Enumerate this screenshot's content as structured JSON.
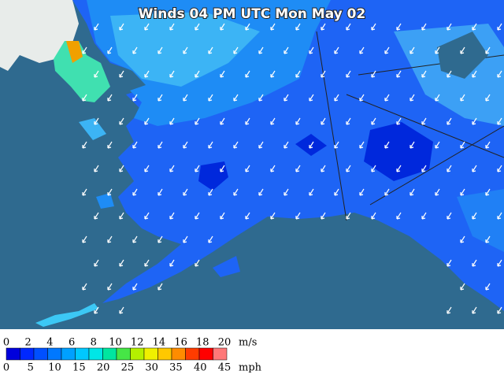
{
  "title": "Winds 04 PM UTC Mon May 02",
  "legend": {
    "colors": [
      "#0000dc",
      "#0028ff",
      "#0050ff",
      "#0078ff",
      "#00a0ff",
      "#00c8ff",
      "#00e6e6",
      "#00e6a0",
      "#46e646",
      "#b4f000",
      "#f0f000",
      "#ffc800",
      "#ff8c00",
      "#ff3c00",
      "#ff0000",
      "#ff7878"
    ],
    "ms_ticks": [
      "0",
      "2",
      "4",
      "6",
      "8",
      "10",
      "12",
      "14",
      "16",
      "18",
      "20"
    ],
    "ms_unit": "m/s",
    "mph_ticks": [
      "0",
      "5",
      "10",
      "15",
      "20",
      "25",
      "30",
      "35",
      "40",
      "45"
    ],
    "mph_unit": "mph"
  }
}
